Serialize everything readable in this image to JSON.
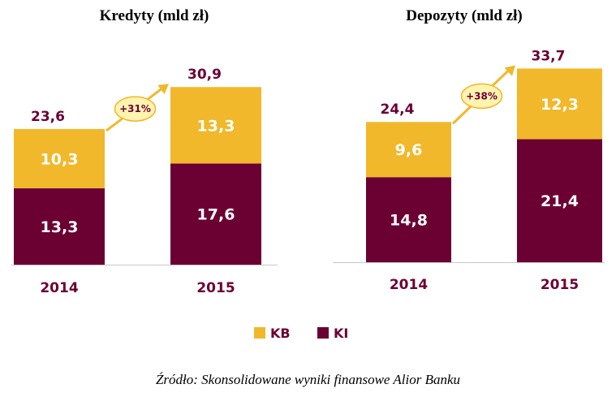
{
  "colors": {
    "kb": "#f0b82a",
    "ki": "#6b0033",
    "arrow": "#f0b82a",
    "bubble_fill": "#fff3b0",
    "bubble_stroke": "#f0b82a",
    "axis": "#c8c8c8"
  },
  "legend": [
    {
      "name": "KB",
      "color": "#f0b82a"
    },
    {
      "name": "KI",
      "color": "#6b0033"
    }
  ],
  "chart_data": [
    {
      "type": "bar",
      "stacked": true,
      "title": "Kredyty (mld zł)",
      "categories": [
        "2014",
        "2015"
      ],
      "series": [
        {
          "name": "KI",
          "values": [
            13.3,
            17.6
          ],
          "labels": [
            "13,3",
            "17,6"
          ]
        },
        {
          "name": "KB",
          "values": [
            10.3,
            13.3
          ],
          "labels": [
            "10,3",
            "13,3"
          ]
        }
      ],
      "totals": [
        23.6,
        30.9
      ],
      "total_labels": [
        "23,6",
        "30,9"
      ],
      "growth_label": "+31%",
      "ylim": [
        0,
        35
      ],
      "grid": false,
      "legend": "bottom"
    },
    {
      "type": "bar",
      "stacked": true,
      "title": "Depozyty (mld zł)",
      "categories": [
        "2014",
        "2015"
      ],
      "series": [
        {
          "name": "KI",
          "values": [
            14.8,
            21.4
          ],
          "labels": [
            "14,8",
            "21,4"
          ]
        },
        {
          "name": "KB",
          "values": [
            9.6,
            12.3
          ],
          "labels": [
            "9,6",
            "12,3"
          ]
        }
      ],
      "totals": [
        24.4,
        33.7
      ],
      "total_labels": [
        "24,4",
        "33,7"
      ],
      "growth_label": "+38%",
      "ylim": [
        0,
        38
      ],
      "grid": false,
      "legend": "bottom"
    }
  ],
  "source": "Źródło: Skonsolidowane wyniki finansowe Alior Banku"
}
